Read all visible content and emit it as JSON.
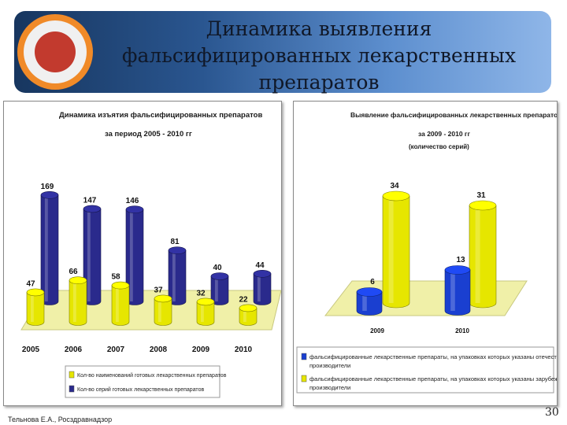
{
  "slide": {
    "title_lines": [
      "Динамика выявления",
      "фальсифицированных лекарственных",
      "препаратов"
    ],
    "footer_author": "Тельнова Е.А., Росздравнадзор",
    "page_number": "30"
  },
  "colors": {
    "banner_dark": "#17365f",
    "banner_light": "#8fb6e8",
    "yellow": "#e6e600",
    "navy": "#2a2a8c",
    "blue": "#1a3fd0",
    "floor": "#f0f0a8",
    "emblem_ring": "#f08a28"
  },
  "chart_data": [
    {
      "type": "bar",
      "title": "Динамика изъятия фальсифицированных препаратов",
      "subtitle": "за период 2005 - 2010 гг",
      "categories": [
        "2005",
        "2006",
        "2007",
        "2008",
        "2009",
        "2010"
      ],
      "series": [
        {
          "name": "Кол-во наименований готовых лекарственных препаратов",
          "values": [
            47,
            66,
            58,
            37,
            32,
            22
          ]
        },
        {
          "name": "Кол-во серий готовых лекарственных препаратов",
          "values": [
            169,
            147,
            146,
            81,
            40,
            44
          ]
        }
      ]
    },
    {
      "type": "bar",
      "title": "Выявление фальсифицированных лекарственных препаратов",
      "subtitle": "за 2009 - 2010 гг",
      "subtitle2": "(количество серий)",
      "categories": [
        "2009",
        "2010"
      ],
      "series": [
        {
          "name": "фальсифицированные лекарственные препараты, на упаковках которых указаны отечественные производители",
          "values": [
            6,
            13
          ]
        },
        {
          "name": "фальсифицированные лекарственные препараты, на упаковках которых указаны зарубежные производители",
          "values": [
            34,
            31
          ]
        }
      ]
    }
  ]
}
